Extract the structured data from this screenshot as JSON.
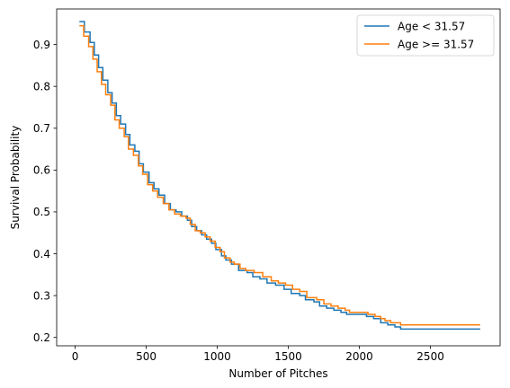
{
  "chart_data": {
    "type": "line",
    "step": true,
    "xlabel": "Number of Pitches",
    "ylabel": "Survival Probability",
    "xlim": [
      -130,
      2990
    ],
    "ylim": [
      0.18,
      0.985
    ],
    "xticks": [
      0,
      500,
      1000,
      1500,
      2000,
      2500
    ],
    "yticks": [
      0.2,
      0.3,
      0.4,
      0.5,
      0.6,
      0.7,
      0.8,
      0.9
    ],
    "grid": false,
    "legend_position": "upper-right",
    "series": [
      {
        "name": "Age < 31.57",
        "color": "#1f77b4",
        "points": [
          [
            30,
            0.955
          ],
          [
            65,
            0.93
          ],
          [
            105,
            0.905
          ],
          [
            135,
            0.875
          ],
          [
            165,
            0.845
          ],
          [
            195,
            0.815
          ],
          [
            230,
            0.785
          ],
          [
            260,
            0.76
          ],
          [
            290,
            0.73
          ],
          [
            320,
            0.71
          ],
          [
            355,
            0.685
          ],
          [
            385,
            0.66
          ],
          [
            420,
            0.645
          ],
          [
            450,
            0.615
          ],
          [
            480,
            0.595
          ],
          [
            520,
            0.57
          ],
          [
            555,
            0.555
          ],
          [
            590,
            0.54
          ],
          [
            630,
            0.52
          ],
          [
            670,
            0.505
          ],
          [
            710,
            0.5
          ],
          [
            750,
            0.49
          ],
          [
            790,
            0.48
          ],
          [
            820,
            0.465
          ],
          [
            855,
            0.455
          ],
          [
            890,
            0.445
          ],
          [
            925,
            0.435
          ],
          [
            960,
            0.425
          ],
          [
            990,
            0.41
          ],
          [
            1030,
            0.395
          ],
          [
            1060,
            0.385
          ],
          [
            1100,
            0.375
          ],
          [
            1150,
            0.36
          ],
          [
            1210,
            0.355
          ],
          [
            1250,
            0.345
          ],
          [
            1300,
            0.34
          ],
          [
            1350,
            0.33
          ],
          [
            1410,
            0.325
          ],
          [
            1470,
            0.315
          ],
          [
            1520,
            0.305
          ],
          [
            1580,
            0.3
          ],
          [
            1620,
            0.29
          ],
          [
            1680,
            0.285
          ],
          [
            1720,
            0.275
          ],
          [
            1770,
            0.27
          ],
          [
            1820,
            0.265
          ],
          [
            1870,
            0.26
          ],
          [
            1910,
            0.255
          ],
          [
            2050,
            0.25
          ],
          [
            2100,
            0.245
          ],
          [
            2150,
            0.235
          ],
          [
            2200,
            0.23
          ],
          [
            2250,
            0.225
          ],
          [
            2290,
            0.22
          ],
          [
            2850,
            0.22
          ]
        ]
      },
      {
        "name": "Age >= 31.57",
        "color": "#ff7f0e",
        "points": [
          [
            30,
            0.945
          ],
          [
            60,
            0.92
          ],
          [
            95,
            0.895
          ],
          [
            125,
            0.865
          ],
          [
            155,
            0.835
          ],
          [
            185,
            0.805
          ],
          [
            215,
            0.78
          ],
          [
            250,
            0.755
          ],
          [
            280,
            0.72
          ],
          [
            310,
            0.7
          ],
          [
            345,
            0.68
          ],
          [
            375,
            0.65
          ],
          [
            410,
            0.635
          ],
          [
            445,
            0.61
          ],
          [
            475,
            0.59
          ],
          [
            510,
            0.565
          ],
          [
            545,
            0.55
          ],
          [
            580,
            0.535
          ],
          [
            620,
            0.52
          ],
          [
            660,
            0.505
          ],
          [
            700,
            0.495
          ],
          [
            740,
            0.49
          ],
          [
            780,
            0.485
          ],
          [
            810,
            0.47
          ],
          [
            845,
            0.455
          ],
          [
            880,
            0.45
          ],
          [
            915,
            0.44
          ],
          [
            950,
            0.43
          ],
          [
            985,
            0.415
          ],
          [
            1020,
            0.405
          ],
          [
            1050,
            0.39
          ],
          [
            1090,
            0.38
          ],
          [
            1120,
            0.375
          ],
          [
            1160,
            0.365
          ],
          [
            1200,
            0.36
          ],
          [
            1260,
            0.355
          ],
          [
            1320,
            0.345
          ],
          [
            1380,
            0.335
          ],
          [
            1430,
            0.33
          ],
          [
            1480,
            0.325
          ],
          [
            1530,
            0.315
          ],
          [
            1580,
            0.31
          ],
          [
            1630,
            0.295
          ],
          [
            1700,
            0.29
          ],
          [
            1750,
            0.28
          ],
          [
            1800,
            0.275
          ],
          [
            1850,
            0.27
          ],
          [
            1900,
            0.265
          ],
          [
            1930,
            0.26
          ],
          [
            2060,
            0.255
          ],
          [
            2110,
            0.25
          ],
          [
            2150,
            0.245
          ],
          [
            2180,
            0.24
          ],
          [
            2220,
            0.235
          ],
          [
            2290,
            0.23
          ],
          [
            2850,
            0.23
          ]
        ]
      }
    ]
  }
}
